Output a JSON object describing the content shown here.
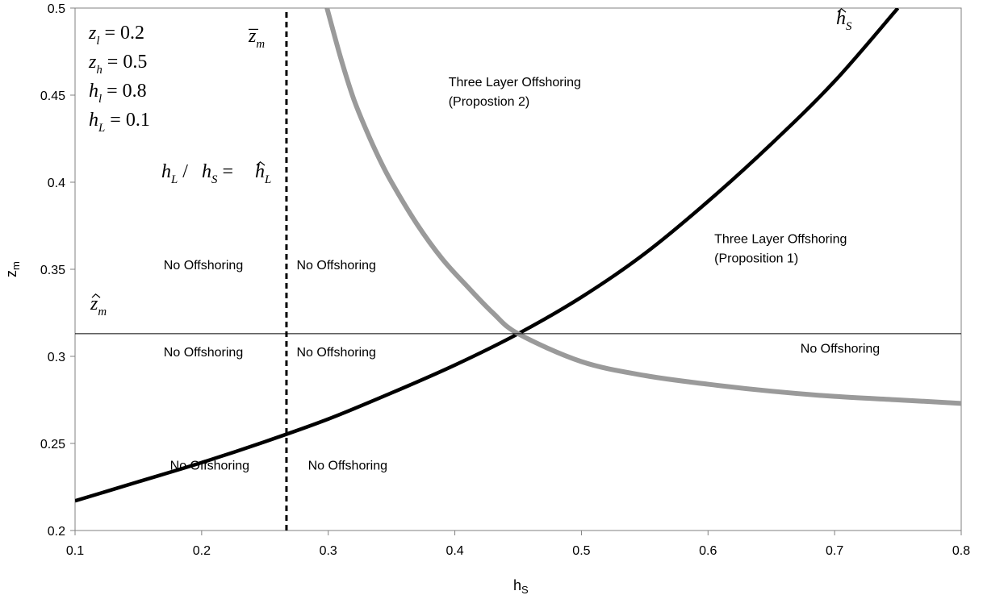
{
  "chart_data": {
    "type": "line",
    "title": "",
    "xlabel": {
      "main": "h",
      "sub": "S"
    },
    "ylabel": {
      "main": "z",
      "sub": "m"
    },
    "xlim": [
      0.1,
      0.8
    ],
    "ylim": [
      0.2,
      0.5
    ],
    "x_ticks": [
      "0.1",
      "0.2",
      "0.3",
      "0.4",
      "0.5",
      "0.6",
      "0.7",
      "0.8"
    ],
    "y_ticks": [
      "0.2",
      "0.25",
      "0.3",
      "0.35",
      "0.4",
      "0.45",
      "0.5"
    ],
    "grid": false,
    "legend": "none",
    "parameters": [
      {
        "var": "z",
        "sub": "l",
        "value": "= 0.2"
      },
      {
        "var": "z",
        "sub": "h",
        "value": "= 0.5"
      },
      {
        "var": "h",
        "sub": "l",
        "value": "= 0.8"
      },
      {
        "var": "h",
        "sub": "L",
        "value": "= 0.1"
      }
    ],
    "series": [
      {
        "name": "ĥ_S",
        "label": {
          "var": "h",
          "sub": "S",
          "accent": "hat"
        },
        "style": "solid-black-thick",
        "color": "#000000",
        "x": [
          0.1,
          0.15,
          0.2,
          0.25,
          0.3,
          0.35,
          0.4,
          0.45,
          0.5,
          0.55,
          0.6,
          0.65,
          0.7,
          0.75
        ],
        "y": [
          0.217,
          0.228,
          0.239,
          0.251,
          0.264,
          0.279,
          0.295,
          0.313,
          0.334,
          0.359,
          0.389,
          0.422,
          0.458,
          0.5
        ]
      },
      {
        "name": "z̄_m",
        "label": {
          "var": "z",
          "sub": "m",
          "accent": "bar"
        },
        "style": "solid-gray-thick",
        "color": "#9a9a9a",
        "x": [
          0.299,
          0.31,
          0.32,
          0.33,
          0.34,
          0.35,
          0.37,
          0.39,
          0.41,
          0.43,
          0.45,
          0.5,
          0.55,
          0.6,
          0.65,
          0.7,
          0.75,
          0.8
        ],
        "y": [
          0.5,
          0.471,
          0.448,
          0.43,
          0.414,
          0.4,
          0.376,
          0.356,
          0.34,
          0.325,
          0.313,
          0.297,
          0.289,
          0.284,
          0.28,
          0.277,
          0.275,
          0.273
        ]
      },
      {
        "name": "ẑ_m",
        "label": {
          "var": "z",
          "sub": "m",
          "accent": "hat"
        },
        "style": "solid-black-thin",
        "color": "#000000",
        "x": [
          0.1,
          0.8
        ],
        "y": [
          0.313,
          0.313
        ]
      },
      {
        "name": "h_L / h_S = ĥ_L",
        "style": "dashed-black",
        "color": "#000000",
        "x": [
          0.267,
          0.267
        ],
        "y": [
          0.2,
          0.5
        ]
      }
    ],
    "annotations": {
      "vertical_line_label": {
        "text_left": "h",
        "sub_left": "L",
        "slash": " / ",
        "text_mid": "h",
        "sub_mid": "S",
        "eq": " = ",
        "text_right": "h",
        "sub_right": "L"
      },
      "regions": [
        {
          "lines": [
            "Three Layer Offshoring",
            "(Propostion 2)"
          ],
          "x": 0.395,
          "y": 0.455
        },
        {
          "lines": [
            "Three Layer Offshoring",
            "(Proposition 1)"
          ],
          "x": 0.605,
          "y": 0.365
        },
        {
          "lines": [
            "No Offshoring"
          ],
          "x": 0.17,
          "y": 0.35
        },
        {
          "lines": [
            "No Offshoring"
          ],
          "x": 0.275,
          "y": 0.35
        },
        {
          "lines": [
            "No Offshoring"
          ],
          "x": 0.17,
          "y": 0.3
        },
        {
          "lines": [
            "No Offshoring"
          ],
          "x": 0.275,
          "y": 0.3
        },
        {
          "lines": [
            "No Offshoring"
          ],
          "x": 0.673,
          "y": 0.302
        },
        {
          "lines": [
            "No Offshoring"
          ],
          "x": 0.175,
          "y": 0.235
        },
        {
          "lines": [
            "No Offshoring"
          ],
          "x": 0.284,
          "y": 0.235
        }
      ]
    }
  }
}
